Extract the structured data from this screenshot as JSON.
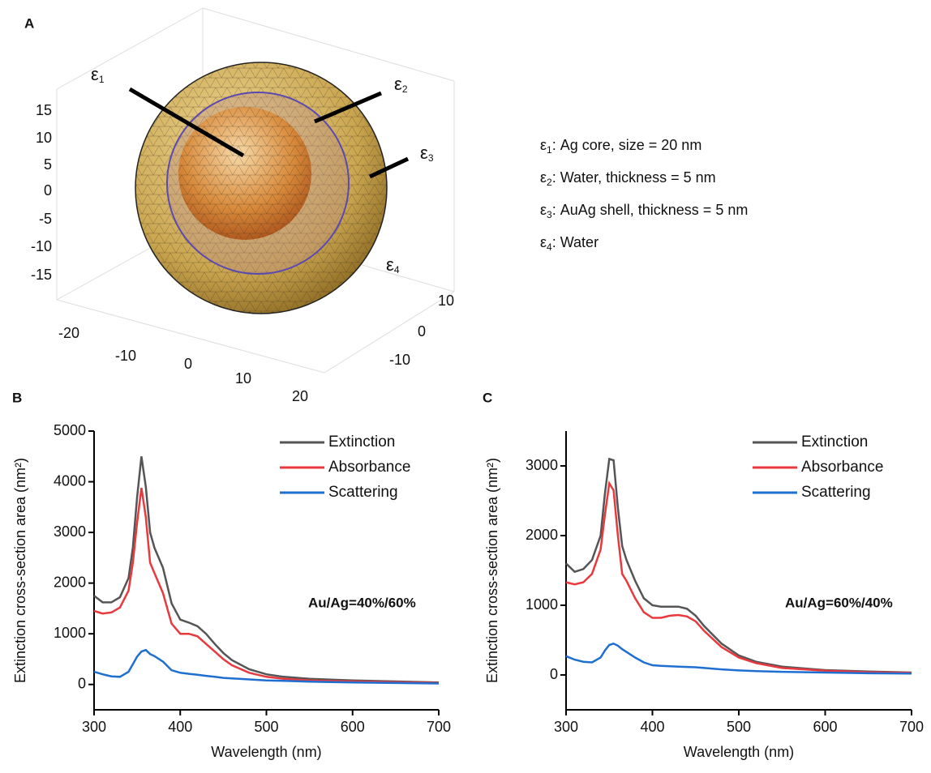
{
  "panel_a": {
    "label": "A",
    "zticks": [
      15,
      10,
      5,
      0,
      -5,
      -10,
      -15
    ],
    "xticks": [
      -20,
      -10,
      0,
      10,
      20
    ],
    "yticks": [
      10,
      0,
      -10
    ],
    "regions": [
      {
        "symbol": "ε",
        "sub": "1"
      },
      {
        "symbol": "ε",
        "sub": "2"
      },
      {
        "symbol": "ε",
        "sub": "3"
      },
      {
        "symbol": "ε",
        "sub": "4"
      }
    ],
    "legend": [
      {
        "symbol": "ε",
        "sub": "1",
        "text": ": Ag core, size = 20 nm"
      },
      {
        "symbol": "ε",
        "sub": "2",
        "text": ": Water, thickness = 5 nm"
      },
      {
        "symbol": "ε",
        "sub": "3",
        "text": ": AuAg shell, thickness = 5 nm"
      },
      {
        "symbol": "ε",
        "sub": "4",
        "text": ": Water"
      }
    ]
  },
  "chart_data": [
    {
      "type": "line",
      "panel": "B",
      "annotation": "Au/Ag=40%/60%",
      "x_label": "Wavelength (nm)",
      "y_label": "Extinction cross-section area (nm²)",
      "x": [
        300,
        310,
        320,
        330,
        340,
        345,
        350,
        355,
        360,
        365,
        370,
        380,
        390,
        400,
        410,
        420,
        430,
        440,
        450,
        460,
        480,
        500,
        520,
        550,
        600,
        650,
        700
      ],
      "xlim": [
        300,
        700
      ],
      "xticks": [
        300,
        400,
        500,
        600,
        700
      ],
      "ylim": [
        -500,
        5000
      ],
      "yticks": [
        0,
        1000,
        2000,
        3000,
        4000,
        5000
      ],
      "legend": "upper right",
      "series": [
        {
          "name": "Extinction",
          "color": "#555555",
          "values": [
            1750,
            1620,
            1620,
            1720,
            2100,
            2700,
            3700,
            4500,
            3900,
            3000,
            2700,
            2300,
            1600,
            1280,
            1220,
            1150,
            1000,
            800,
            620,
            480,
            300,
            200,
            150,
            110,
            80,
            60,
            40
          ]
        },
        {
          "name": "Absorbance",
          "color": "#e8393e",
          "values": [
            1450,
            1400,
            1420,
            1520,
            1850,
            2400,
            3200,
            3880,
            3300,
            2400,
            2200,
            1800,
            1200,
            1000,
            1000,
            950,
            800,
            650,
            500,
            380,
            230,
            150,
            110,
            80,
            60,
            45,
            30
          ]
        },
        {
          "name": "Scattering",
          "color": "#1f6fd1",
          "values": [
            250,
            200,
            160,
            150,
            250,
            400,
            550,
            650,
            680,
            600,
            560,
            450,
            280,
            230,
            210,
            190,
            170,
            150,
            130,
            120,
            100,
            80,
            70,
            55,
            40,
            30,
            20
          ]
        }
      ]
    },
    {
      "type": "line",
      "panel": "C",
      "annotation": "Au/Ag=60%/40%",
      "x_label": "Wavelength (nm)",
      "y_label": "Extinction cross-section area (nm²)",
      "x": [
        300,
        310,
        320,
        330,
        340,
        345,
        350,
        355,
        360,
        365,
        370,
        380,
        390,
        400,
        410,
        420,
        430,
        440,
        450,
        460,
        480,
        500,
        520,
        550,
        600,
        650,
        700
      ],
      "xlim": [
        300,
        700
      ],
      "xticks": [
        300,
        400,
        500,
        600,
        700
      ],
      "ylim": [
        -500,
        3500
      ],
      "yticks": [
        0,
        1000,
        2000,
        3000
      ],
      "legend": "upper right",
      "series": [
        {
          "name": "Extinction",
          "color": "#555555",
          "values": [
            1600,
            1480,
            1520,
            1650,
            2000,
            2600,
            3100,
            3080,
            2400,
            1850,
            1650,
            1350,
            1100,
            1000,
            980,
            980,
            980,
            950,
            850,
            700,
            450,
            280,
            190,
            120,
            70,
            50,
            35
          ]
        },
        {
          "name": "Absorbance",
          "color": "#e8393e",
          "values": [
            1330,
            1300,
            1330,
            1450,
            1800,
            2300,
            2750,
            2650,
            2000,
            1450,
            1350,
            1100,
            900,
            820,
            820,
            850,
            860,
            840,
            770,
            630,
            400,
            250,
            170,
            100,
            60,
            40,
            30
          ]
        },
        {
          "name": "Scattering",
          "color": "#1f6fd1",
          "values": [
            270,
            220,
            190,
            180,
            250,
            350,
            430,
            450,
            420,
            370,
            330,
            250,
            180,
            140,
            130,
            125,
            120,
            115,
            110,
            100,
            80,
            65,
            55,
            45,
            35,
            25,
            20
          ]
        }
      ]
    }
  ]
}
